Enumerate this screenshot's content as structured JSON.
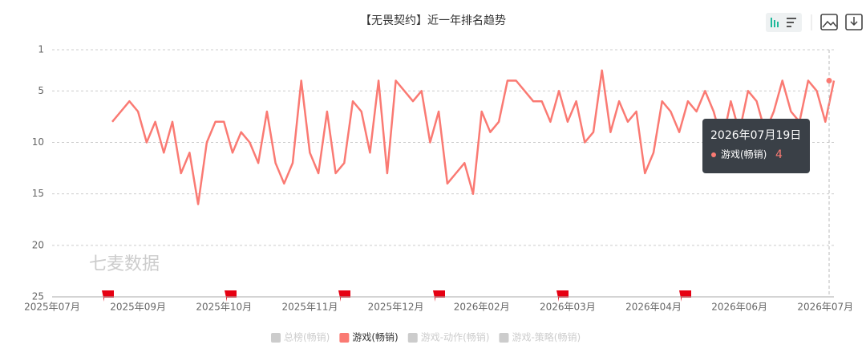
{
  "chart_data": {
    "type": "line",
    "title": "【无畏契约】近一年排名趋势",
    "watermark": "七麦数据",
    "categories": [
      "2025年07月",
      null,
      null,
      null,
      null,
      null,
      null,
      null,
      null,
      null,
      "2025年09月",
      null,
      null,
      null,
      null,
      null,
      null,
      null,
      null,
      null,
      "2025年10月",
      null,
      null,
      null,
      null,
      null,
      null,
      null,
      null,
      null,
      "2025年11月",
      null,
      null,
      null,
      null,
      null,
      null,
      null,
      null,
      null,
      "2025年12月",
      null,
      null,
      null,
      null,
      null,
      null,
      null,
      null,
      null,
      "2026年02月",
      null,
      null,
      null,
      null,
      null,
      null,
      null,
      null,
      null,
      "2026年03月",
      null,
      null,
      null,
      null,
      null,
      null,
      null,
      null,
      null,
      "2026年04月",
      null,
      null,
      null,
      null,
      null,
      null,
      null,
      null,
      null,
      "2026年06月",
      null,
      null,
      null,
      null,
      null,
      null,
      null,
      null,
      null,
      "2026年07月",
      null
    ],
    "series": [
      {
        "name": "游戏(畅销)",
        "color": "#fa7a73",
        "values": [
          null,
          null,
          null,
          null,
          null,
          null,
          null,
          8,
          7,
          6,
          7,
          10,
          8,
          11,
          8,
          13,
          11,
          16,
          10,
          8,
          8,
          11,
          9,
          10,
          12,
          7,
          12,
          14,
          12,
          4,
          11,
          13,
          7,
          13,
          12,
          6,
          7,
          11,
          4,
          13,
          4,
          5,
          6,
          5,
          10,
          7,
          14,
          13,
          12,
          15,
          7,
          9,
          8,
          4,
          4,
          5,
          6,
          6,
          8,
          5,
          8,
          6,
          10,
          9,
          3,
          9,
          6,
          8,
          7,
          13,
          11,
          6,
          7,
          9,
          6,
          7,
          5,
          7,
          10,
          6,
          9,
          5,
          6,
          9,
          7,
          4,
          7,
          8,
          4,
          5,
          8,
          4
        ]
      }
    ],
    "hidden_series": [
      {
        "name": "总榜(畅销)",
        "color": "#cccccc"
      },
      {
        "name": "游戏-动作(畅销)",
        "color": "#cccccc"
      },
      {
        "name": "游戏-策略(畅销)",
        "color": "#cccccc"
      }
    ],
    "ylim": [
      1,
      25
    ],
    "yticks": [
      1,
      5,
      10,
      15,
      20,
      25
    ],
    "y_inverse": true,
    "grid": true,
    "tooltip": {
      "title": "2026年07月19日",
      "series": "游戏(畅销)",
      "value": 4
    }
  }
}
